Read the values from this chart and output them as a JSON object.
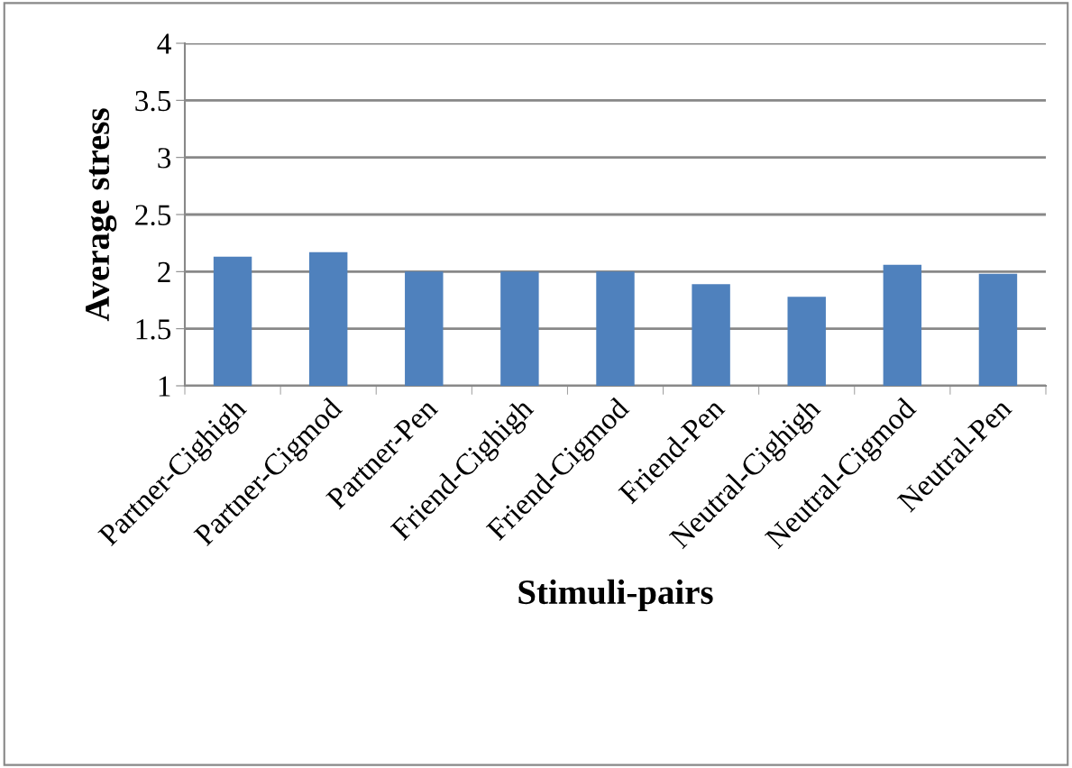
{
  "chart_data": {
    "type": "bar",
    "xlabel": "Stimuli-pairs",
    "ylabel": "Average stress",
    "categories": [
      "Partner-Cighigh",
      "Partner-Cigmod",
      "Partner-Pen",
      "Friend-Cighigh",
      "Friend-Cigmod",
      "Friend-Pen",
      "Neutral-Cighigh",
      "Neutral-Cigmod",
      "Neutral-Pen"
    ],
    "values": [
      2.13,
      2.17,
      2.0,
      2.0,
      2.0,
      1.89,
      1.78,
      2.06,
      1.98
    ],
    "color": "#4f81bd",
    "ylim": [
      1,
      4
    ],
    "yticks": [
      1,
      1.5,
      2,
      2.5,
      3,
      3.5,
      4
    ],
    "grid": "y",
    "legend": false
  }
}
